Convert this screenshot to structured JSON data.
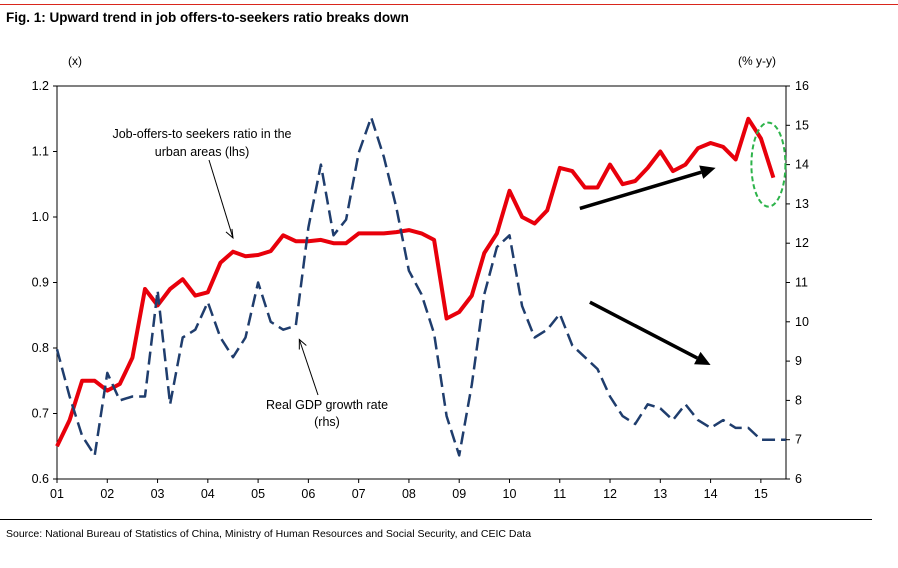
{
  "figure": {
    "title": "Fig. 1: Upward trend in job offers-to-seekers ratio breaks down",
    "source": "Source: National Bureau of Statistics of China, Ministry of Human Resources and Social Security, and CEIC Data",
    "accent_color": "#d9261c"
  },
  "chart_data": {
    "type": "line",
    "x_tick_labels": [
      "01",
      "02",
      "03",
      "04",
      "05",
      "06",
      "07",
      "08",
      "09",
      "10",
      "11",
      "12",
      "13",
      "14",
      "15"
    ],
    "x_range": [
      2001.0,
      2015.5
    ],
    "y_left": {
      "unit_label": "(x)",
      "range": [
        0.6,
        1.2
      ],
      "ticks": [
        "0.6",
        "0.7",
        "0.8",
        "0.9",
        "1.0",
        "1.1",
        "1.2"
      ]
    },
    "y_right": {
      "unit_label": "(% y-y)",
      "range": [
        6,
        16
      ],
      "ticks": [
        "6",
        "7",
        "8",
        "9",
        "10",
        "11",
        "12",
        "13",
        "14",
        "15",
        "16"
      ]
    },
    "grid": false,
    "series": [
      {
        "axis": "left",
        "color": "#e8000b",
        "style": "solid",
        "x": [
          2001.0,
          2001.25,
          2001.5,
          2001.75,
          2002.0,
          2002.25,
          2002.5,
          2002.75,
          2003.0,
          2003.25,
          2003.5,
          2003.75,
          2004.0,
          2004.25,
          2004.5,
          2004.75,
          2005.0,
          2005.25,
          2005.5,
          2005.75,
          2006.0,
          2006.25,
          2006.5,
          2006.75,
          2007.0,
          2007.25,
          2007.5,
          2007.75,
          2008.0,
          2008.25,
          2008.5,
          2008.75,
          2009.0,
          2009.25,
          2009.5,
          2009.75,
          2010.0,
          2010.25,
          2010.5,
          2010.75,
          2011.0,
          2011.25,
          2011.5,
          2011.75,
          2012.0,
          2012.25,
          2012.5,
          2012.75,
          2013.0,
          2013.25,
          2013.5,
          2013.75,
          2014.0,
          2014.25,
          2014.5,
          2014.75,
          2015.0,
          2015.25
        ],
        "values": [
          0.65,
          0.69,
          0.75,
          0.75,
          0.735,
          0.745,
          0.785,
          0.89,
          0.865,
          0.89,
          0.905,
          0.88,
          0.885,
          0.93,
          0.947,
          0.94,
          0.942,
          0.948,
          0.972,
          0.963,
          0.963,
          0.965,
          0.96,
          0.96,
          0.975,
          0.975,
          0.975,
          0.977,
          0.98,
          0.975,
          0.965,
          0.845,
          0.855,
          0.88,
          0.945,
          0.975,
          1.04,
          1.0,
          0.99,
          1.01,
          1.075,
          1.07,
          1.045,
          1.045,
          1.08,
          1.05,
          1.055,
          1.075,
          1.1,
          1.07,
          1.08,
          1.105,
          1.113,
          1.107,
          1.088,
          1.15,
          1.12,
          1.06
        ]
      },
      {
        "axis": "right",
        "color": "#1f3d6d",
        "style": "dashed",
        "x": [
          2001.0,
          2001.25,
          2001.5,
          2001.75,
          2002.0,
          2002.25,
          2002.5,
          2002.75,
          2003.0,
          2003.25,
          2003.5,
          2003.75,
          2004.0,
          2004.25,
          2004.5,
          2004.75,
          2005.0,
          2005.25,
          2005.5,
          2005.75,
          2006.0,
          2006.25,
          2006.5,
          2006.75,
          2007.0,
          2007.25,
          2007.5,
          2007.75,
          2008.0,
          2008.25,
          2008.5,
          2008.75,
          2009.0,
          2009.25,
          2009.5,
          2009.75,
          2010.0,
          2010.25,
          2010.5,
          2010.75,
          2011.0,
          2011.25,
          2011.5,
          2011.75,
          2012.0,
          2012.25,
          2012.5,
          2012.75,
          2013.0,
          2013.25,
          2013.5,
          2013.75,
          2014.0,
          2014.25,
          2014.5,
          2014.75,
          2015.0,
          2015.25,
          2015.5
        ],
        "values": [
          9.3,
          8.1,
          7.1,
          6.6,
          8.7,
          8.0,
          8.1,
          8.1,
          10.8,
          7.9,
          9.6,
          9.8,
          10.5,
          9.6,
          9.1,
          9.6,
          11.0,
          10.0,
          9.8,
          9.9,
          12.4,
          14.0,
          12.2,
          12.6,
          14.3,
          15.2,
          14.2,
          12.9,
          11.3,
          10.7,
          9.7,
          7.6,
          6.6,
          8.4,
          10.7,
          11.9,
          12.2,
          10.4,
          9.6,
          9.8,
          10.2,
          9.4,
          9.1,
          8.8,
          8.1,
          7.6,
          7.4,
          7.9,
          7.8,
          7.5,
          7.9,
          7.5,
          7.3,
          7.5,
          7.3,
          7.3,
          7.0,
          7.0,
          7.0
        ]
      }
    ],
    "annotations": [
      {
        "text_lines": [
          "Job-offers-to seekers ratio in the",
          "urban areas (lhs)"
        ],
        "points_to": {
          "x": 2004.5,
          "y_left": 0.965
        }
      },
      {
        "text_lines": [
          "Real GDP growth rate",
          "(rhs)"
        ],
        "points_to": {
          "x": 2005.8,
          "y_right": 9.6
        }
      }
    ],
    "arrows": [
      {
        "from": {
          "x": 2011.4,
          "y_left": 1.013
        },
        "to": {
          "x": 2014.1,
          "y_left": 1.075
        }
      },
      {
        "from": {
          "x": 2011.6,
          "y_right": 10.5
        },
        "to": {
          "x": 2014.0,
          "y_right": 8.9
        }
      }
    ],
    "highlight_ellipse": {
      "x": 2015.15,
      "y_right": 14.0,
      "color": "#2db34a"
    }
  }
}
